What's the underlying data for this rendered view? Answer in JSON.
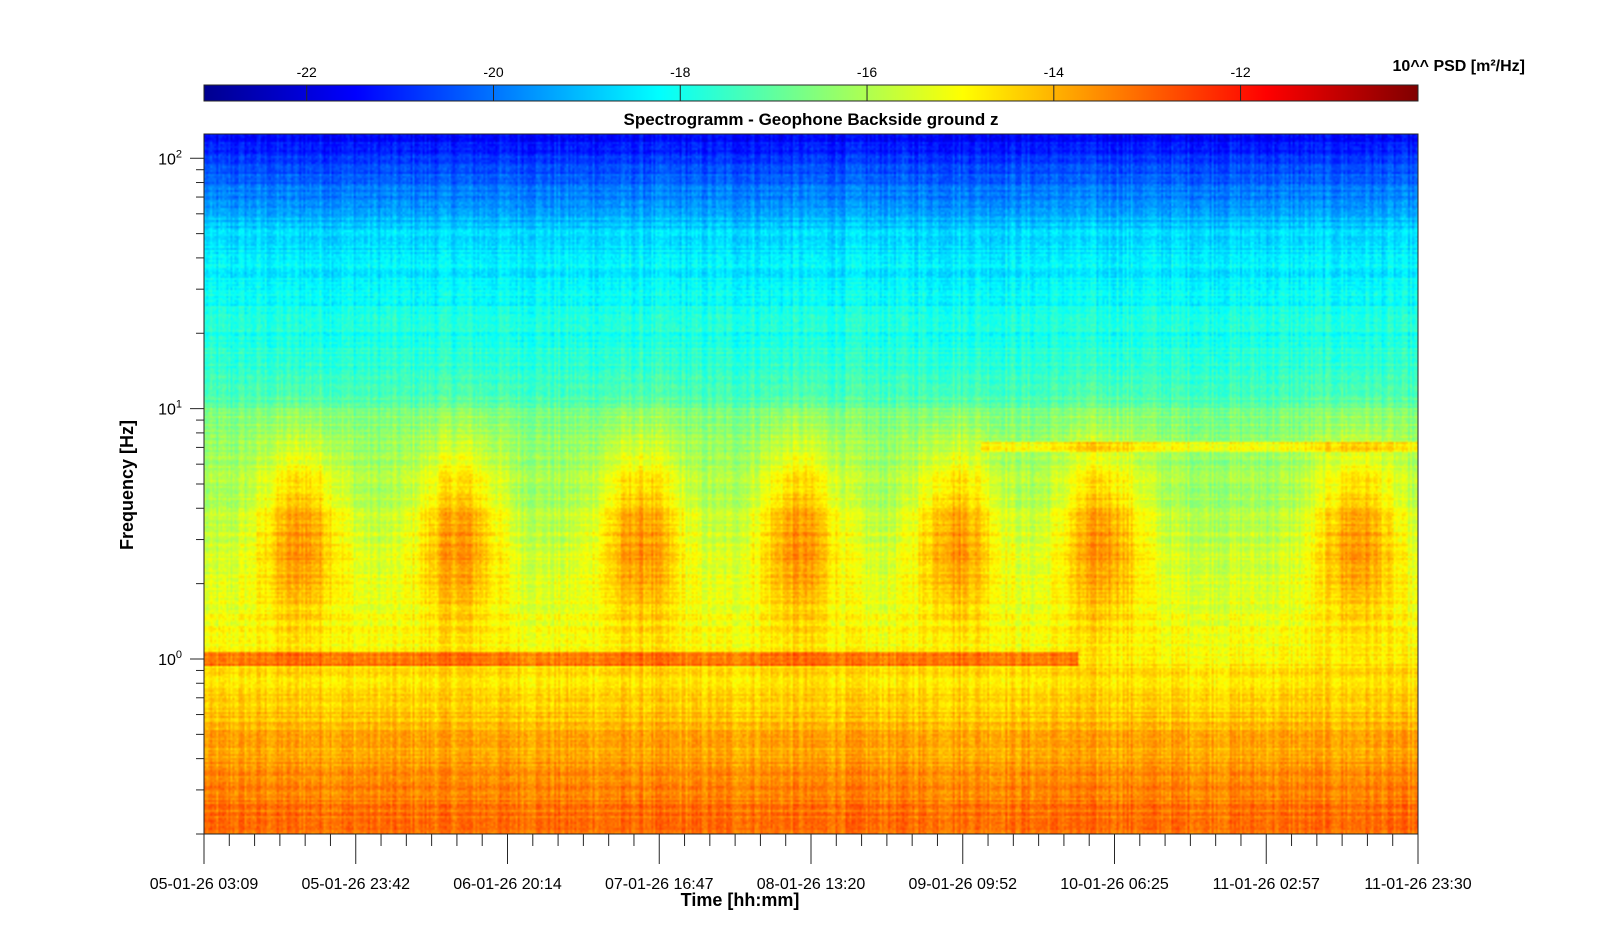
{
  "chart_data": {
    "type": "heatmap",
    "title": "Spectrogramm - Geophone Backside ground z",
    "xlabel": "Time [hh:mm]",
    "ylabel": "Frequency [Hz]",
    "y_scale": "log",
    "ylim": [
      0.2,
      125
    ],
    "x_ticks": [
      "05-01-26 03:09",
      "05-01-26 23:42",
      "06-01-26 20:14",
      "07-01-26 16:47",
      "08-01-26 13:20",
      "09-01-26 09:52",
      "10-01-26 06:25",
      "11-01-26 02:57",
      "11-01-26 23:30"
    ],
    "y_ticks": [
      {
        "base": "10",
        "exp": "0",
        "value": 1
      },
      {
        "base": "10",
        "exp": "1",
        "value": 10
      },
      {
        "base": "10",
        "exp": "2",
        "value": 100
      }
    ],
    "colorbar": {
      "label": "10^^ PSD [m²/Hz]",
      "range": [
        -23.1,
        -10.1
      ],
      "ticks": [
        "-22",
        "-20",
        "-18",
        "-16",
        "-14",
        "-12"
      ],
      "tick_values": [
        -22,
        -20,
        -18,
        -16,
        -14,
        -12
      ],
      "colormap": "jet"
    },
    "activity_bursts_day_fraction": [
      0.08,
      0.21,
      0.36,
      0.49,
      0.62,
      0.74,
      0.95
    ],
    "notable_lines_hz": [
      1.0,
      7.0
    ]
  }
}
